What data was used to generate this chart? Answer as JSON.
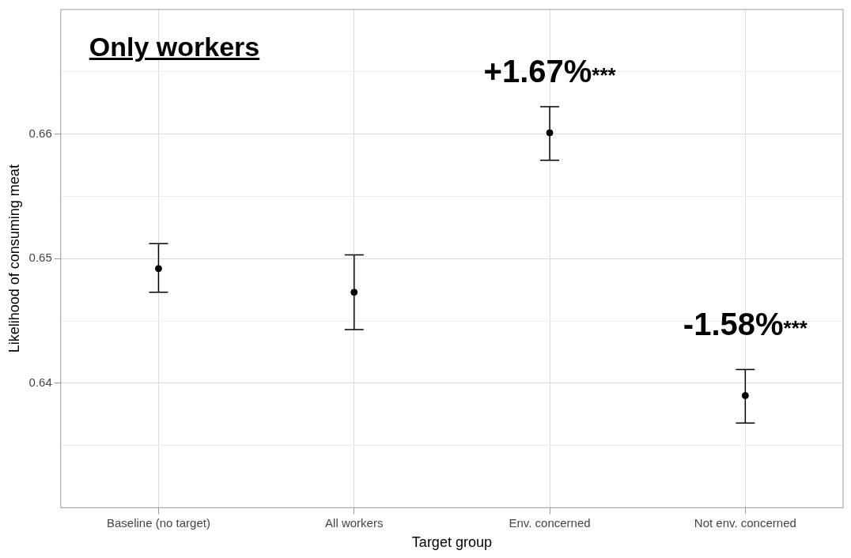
{
  "chart_data": {
    "type": "scatter",
    "title": "Only workers",
    "xlabel": "Target group",
    "ylabel": "Likelihood of consuming meat",
    "categories": [
      "Baseline (no target)",
      "All workers",
      "Env. concerned",
      "Not env. concerned"
    ],
    "values": [
      0.6492,
      0.6473,
      0.6601,
      0.639
    ],
    "errors": [
      [
        0.6473,
        0.6512
      ],
      [
        0.6443,
        0.6503
      ],
      [
        0.6579,
        0.6622
      ],
      [
        0.6368,
        0.6411
      ]
    ],
    "color": "#000000",
    "marker": "circle",
    "grid": true,
    "ylim": [
      0.63,
      0.67
    ],
    "yticks": [
      {
        "value": 0.635,
        "label": null
      },
      0.64,
      {
        "value": 0.645,
        "label": null
      },
      0.65,
      {
        "value": 0.655,
        "label": null
      },
      0.66,
      {
        "value": 0.665,
        "label": null
      }
    ],
    "annotations": [
      "+1.67%***",
      "-1.58%***"
    ]
  }
}
